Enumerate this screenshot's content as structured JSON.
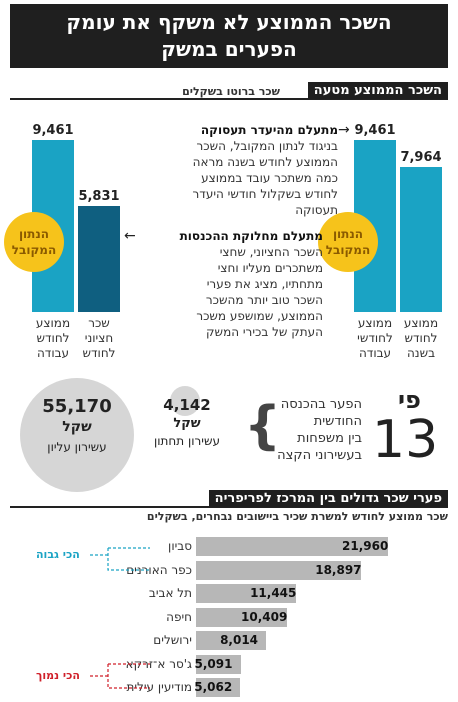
{
  "title": {
    "line1": "השכר הממוצע לא משקף את עומק",
    "line2": "הפערים במשק"
  },
  "section1": {
    "header": "השכר הממוצע מטעה",
    "subheader": "שכר ברוטו בשקלים"
  },
  "badge_text": {
    "line1": "הנתון",
    "line2": "המקובל"
  },
  "left_chart": {
    "bars": [
      {
        "value": "9,461",
        "caption": [
          "ממוצע",
          "לחודש",
          "עבודה"
        ]
      },
      {
        "value": "5,831",
        "caption": [
          "שכר",
          "חציוני",
          "לחודש"
        ]
      }
    ]
  },
  "right_chart": {
    "bars": [
      {
        "value": "9,461",
        "caption": [
          "ממוצע",
          "לחודשי",
          "עבודה"
        ]
      },
      {
        "value": "7,964",
        "caption": [
          "ממוצע",
          "לחודש",
          "בשנה"
        ]
      }
    ]
  },
  "note1": {
    "title": "מתעלם מהיעדר תעסוקה",
    "lines": [
      "בניגוד לנתון המקובל, השכר",
      "הממוצע לחודש בשנה מראה",
      "כמה משתכר עובד בממוצע",
      "לחודש בשקלול חודשי היעדר",
      "תעסוקה"
    ]
  },
  "note2": {
    "title": "מתעלם מחלוקת ההכנסות",
    "lines": [
      "השכר החציוני, שחצי",
      "משתכרים מעליו וחצי",
      "מתחתיו, מציג את פערי",
      "השכר טוב יותר מהשכר",
      "הממוצע, שמושפע משכר",
      "העתק של בכירי המשק"
    ]
  },
  "gap": {
    "big_value": "55,170",
    "big_unit": "שקל",
    "big_label": "עשירון עליון",
    "small_value": "4,142",
    "small_unit": "שקל",
    "small_label": "עשירון תחתון",
    "multiplier_word": "פי",
    "multiplier": "13",
    "desc": [
      "הפער בהכנסה",
      "החודשית",
      "בין משפחות",
      "בעשירוני הקצה"
    ]
  },
  "section2": {
    "header": "פערי שכר גדולים בין המרכז לפריפריה",
    "subheader": "שכר ממוצע לחודש למשרת שכיר ביישובים נבחרים, בשקלים"
  },
  "tags": {
    "high": "הכי גבוה",
    "low": "הכי נמוך",
    "high_color": "#1aa3c4",
    "low_color": "#d0202a"
  },
  "chart_data": [
    {
      "type": "bar",
      "categories": [
        "ממוצע לחודש עבודה",
        "שכר חציוני לחודש"
      ],
      "values": [
        9461,
        5831
      ]
    },
    {
      "type": "bar",
      "categories": [
        "ממוצע לחודשי עבודה",
        "ממוצע לחודש בשנה"
      ],
      "values": [
        9461,
        7964
      ]
    },
    {
      "type": "bar",
      "orientation": "horizontal",
      "categories": [
        "סביון",
        "כפר האורנים",
        "תל אביב",
        "חיפה",
        "ירושלים",
        "ג'סר א־זרקא",
        "מודיעין עילית"
      ],
      "values": [
        21960,
        18897,
        11445,
        10409,
        8014,
        5091,
        5062
      ],
      "labels": [
        "21,960",
        "18,897",
        "11,445",
        "10,409",
        "8,014",
        "5,091",
        "5,062"
      ]
    }
  ]
}
